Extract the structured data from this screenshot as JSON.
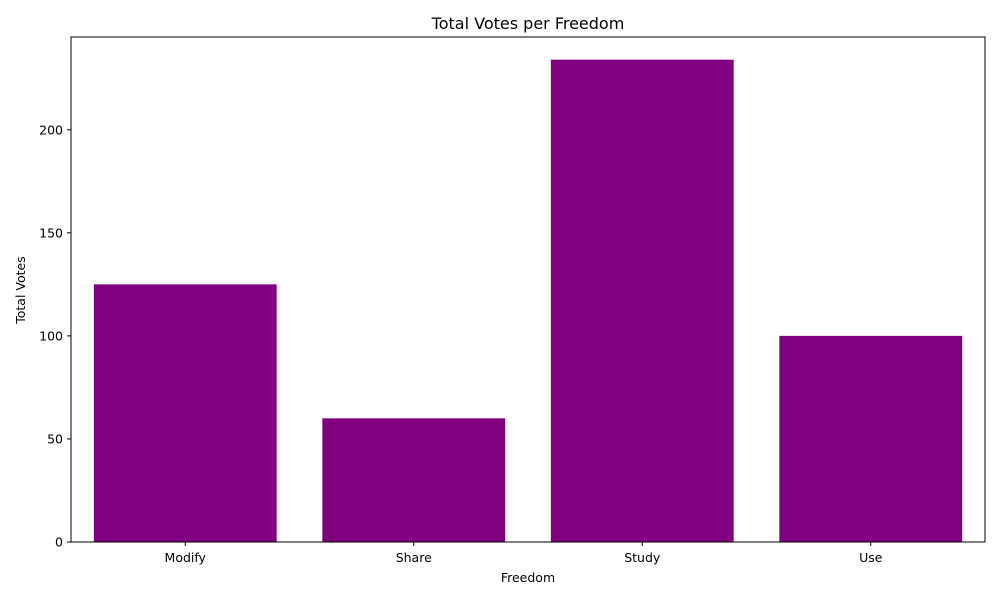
{
  "chart_data": {
    "type": "bar",
    "title": "Total Votes per Freedom",
    "xlabel": "Freedom",
    "ylabel": "Total Votes",
    "categories": [
      "Modify",
      "Share",
      "Study",
      "Use"
    ],
    "values": [
      125,
      60,
      234,
      100
    ],
    "ylim": [
      0,
      245
    ],
    "yticks": [
      0,
      50,
      100,
      150,
      200
    ],
    "bar_color": "#800080",
    "grid": false,
    "legend": "none"
  }
}
